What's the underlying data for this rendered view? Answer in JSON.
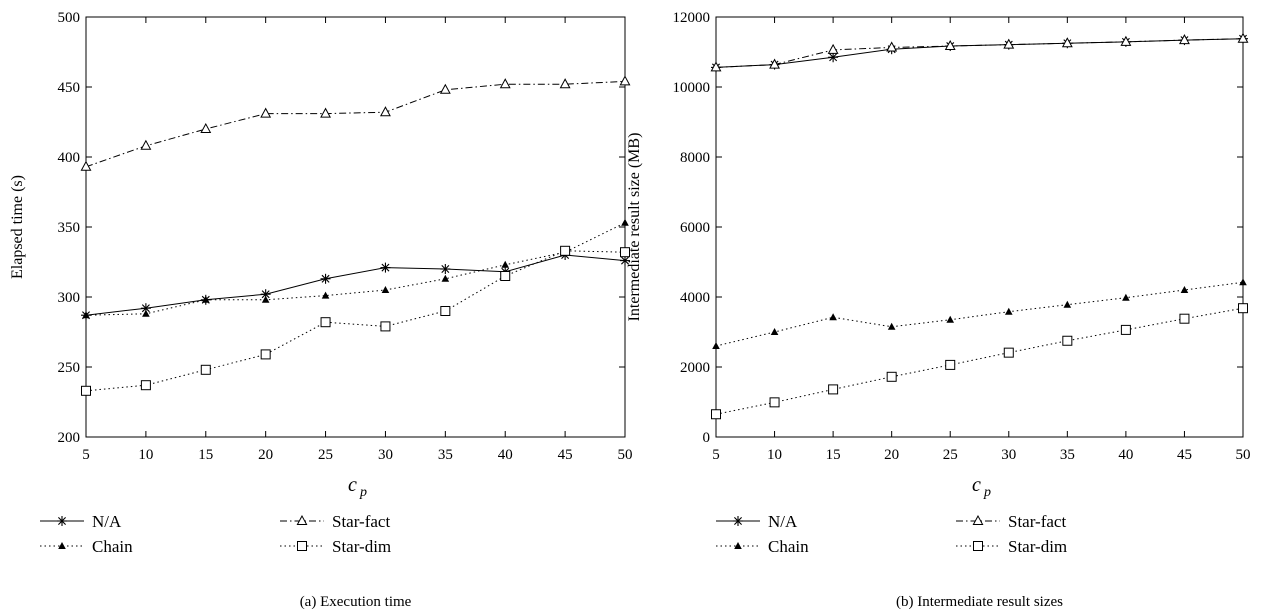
{
  "figure": {
    "legend_entries": [
      "N/A",
      "Chain",
      "Star-fact",
      "Star-dim"
    ]
  },
  "chart_data": [
    {
      "type": "line",
      "caption": "(a)  Execution time",
      "xlabel": "c",
      "xlabel_sub": "p",
      "ylabel": "Elapsed time (s)",
      "xlim": [
        5,
        50
      ],
      "ylim": [
        200,
        500
      ],
      "xticks": [
        5,
        10,
        15,
        20,
        25,
        30,
        35,
        40,
        45,
        50
      ],
      "yticks": [
        200,
        250,
        300,
        350,
        400,
        450,
        500
      ],
      "grid": false,
      "legend_position": "bottom",
      "x": [
        5,
        10,
        15,
        20,
        25,
        30,
        35,
        40,
        45,
        50
      ],
      "series": [
        {
          "name": "N/A",
          "marker": "asterisk",
          "line": "solid",
          "values": [
            287,
            292,
            298,
            302,
            313,
            321,
            320,
            318,
            330,
            326
          ]
        },
        {
          "name": "Chain",
          "marker": "filled-triangle",
          "line": "dotted",
          "values": [
            287,
            288,
            298,
            298,
            301,
            305,
            313,
            323,
            332,
            353
          ]
        },
        {
          "name": "Star-fact",
          "marker": "open-triangle",
          "line": "dashdot",
          "values": [
            393,
            408,
            420,
            431,
            431,
            432,
            448,
            452,
            452,
            454
          ]
        },
        {
          "name": "Star-dim",
          "marker": "open-square",
          "line": "dotted",
          "values": [
            233,
            237,
            248,
            259,
            282,
            279,
            290,
            315,
            333,
            332
          ]
        }
      ]
    },
    {
      "type": "line",
      "caption": "(b)  Intermediate result sizes",
      "xlabel": "c",
      "xlabel_sub": "p",
      "ylabel": "Intermediate result size (MB)",
      "xlim": [
        5,
        50
      ],
      "ylim": [
        0,
        12000
      ],
      "xticks": [
        5,
        10,
        15,
        20,
        25,
        30,
        35,
        40,
        45,
        50
      ],
      "yticks": [
        0,
        2000,
        4000,
        6000,
        8000,
        10000,
        12000
      ],
      "grid": false,
      "legend_position": "bottom",
      "x": [
        5,
        10,
        15,
        20,
        25,
        30,
        35,
        40,
        45,
        50
      ],
      "series": [
        {
          "name": "N/A",
          "marker": "asterisk",
          "line": "solid",
          "values": [
            10560,
            10640,
            10850,
            11080,
            11170,
            11210,
            11250,
            11290,
            11340,
            11380
          ]
        },
        {
          "name": "Chain",
          "marker": "filled-triangle",
          "line": "dotted",
          "values": [
            2600,
            3000,
            3420,
            3150,
            3350,
            3580,
            3780,
            3980,
            4200,
            4420
          ]
        },
        {
          "name": "Star-fact",
          "marker": "open-triangle",
          "line": "dashdot",
          "values": [
            10560,
            10640,
            11060,
            11130,
            11170,
            11210,
            11250,
            11290,
            11340,
            11380
          ]
        },
        {
          "name": "Star-dim",
          "marker": "open-square",
          "line": "dotted",
          "values": [
            650,
            990,
            1360,
            1720,
            2060,
            2410,
            2750,
            3060,
            3380,
            3680
          ]
        }
      ]
    }
  ]
}
